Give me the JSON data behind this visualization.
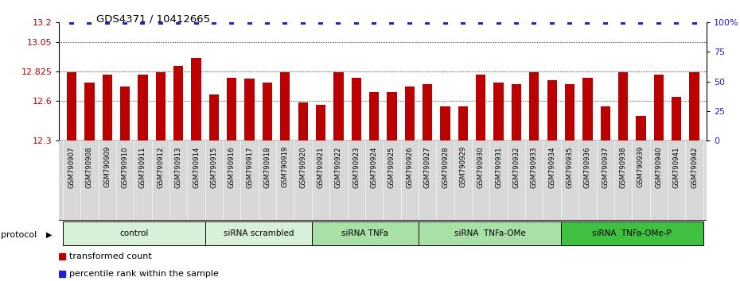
{
  "title": "GDS4371 / 10412665",
  "bar_values": [
    12.82,
    12.74,
    12.8,
    12.71,
    12.8,
    12.82,
    12.87,
    12.93,
    12.65,
    12.78,
    12.77,
    12.74,
    12.82,
    12.59,
    12.57,
    12.82,
    12.78,
    12.67,
    12.67,
    12.71,
    12.73,
    12.56,
    12.56,
    12.8,
    12.74,
    12.73,
    12.82,
    12.76,
    12.73,
    12.78,
    12.56,
    12.82,
    12.49,
    12.8,
    12.63,
    12.82
  ],
  "sample_labels": [
    "GSM790907",
    "GSM790908",
    "GSM790909",
    "GSM790910",
    "GSM790911",
    "GSM790912",
    "GSM790913",
    "GSM790914",
    "GSM790915",
    "GSM790916",
    "GSM790917",
    "GSM790918",
    "GSM790919",
    "GSM790920",
    "GSM790921",
    "GSM790922",
    "GSM790923",
    "GSM790924",
    "GSM790925",
    "GSM790926",
    "GSM790927",
    "GSM790928",
    "GSM790929",
    "GSM790930",
    "GSM790931",
    "GSM790932",
    "GSM790933",
    "GSM790934",
    "GSM790935",
    "GSM790936",
    "GSM790937",
    "GSM790938",
    "GSM790939",
    "GSM790940",
    "GSM790941",
    "GSM790942"
  ],
  "ylim_left": [
    12.3,
    13.2
  ],
  "ylim_right": [
    0,
    100
  ],
  "yticks_left": [
    12.3,
    12.6,
    12.825,
    13.05,
    13.2
  ],
  "ytick_labels_left": [
    "12.3",
    "12.6",
    "12.825",
    "13.05",
    "13.2"
  ],
  "yticks_right": [
    0,
    25,
    50,
    75,
    100
  ],
  "ytick_labels_right": [
    "0",
    "25",
    "50",
    "75",
    "100%"
  ],
  "bar_color": "#bb0000",
  "dot_color": "#2222cc",
  "label_bg_color": "#d0d0d0",
  "protocol_groups": [
    {
      "label": "control",
      "start": 0,
      "end": 7,
      "color": "#d8f0d8"
    },
    {
      "label": "siRNA scrambled",
      "start": 8,
      "end": 13,
      "color": "#d8f0d8"
    },
    {
      "label": "siRNA TNFa",
      "start": 14,
      "end": 19,
      "color": "#a8e0a8"
    },
    {
      "label": "siRNA  TNFa-OMe",
      "start": 20,
      "end": 27,
      "color": "#a8e0a8"
    },
    {
      "label": "siRNA  TNFa-OMe-P",
      "start": 28,
      "end": 35,
      "color": "#40c040"
    }
  ],
  "legend_items": [
    {
      "label": "transformed count",
      "color": "#bb0000"
    },
    {
      "label": "percentile rank within the sample",
      "color": "#2222cc"
    }
  ]
}
